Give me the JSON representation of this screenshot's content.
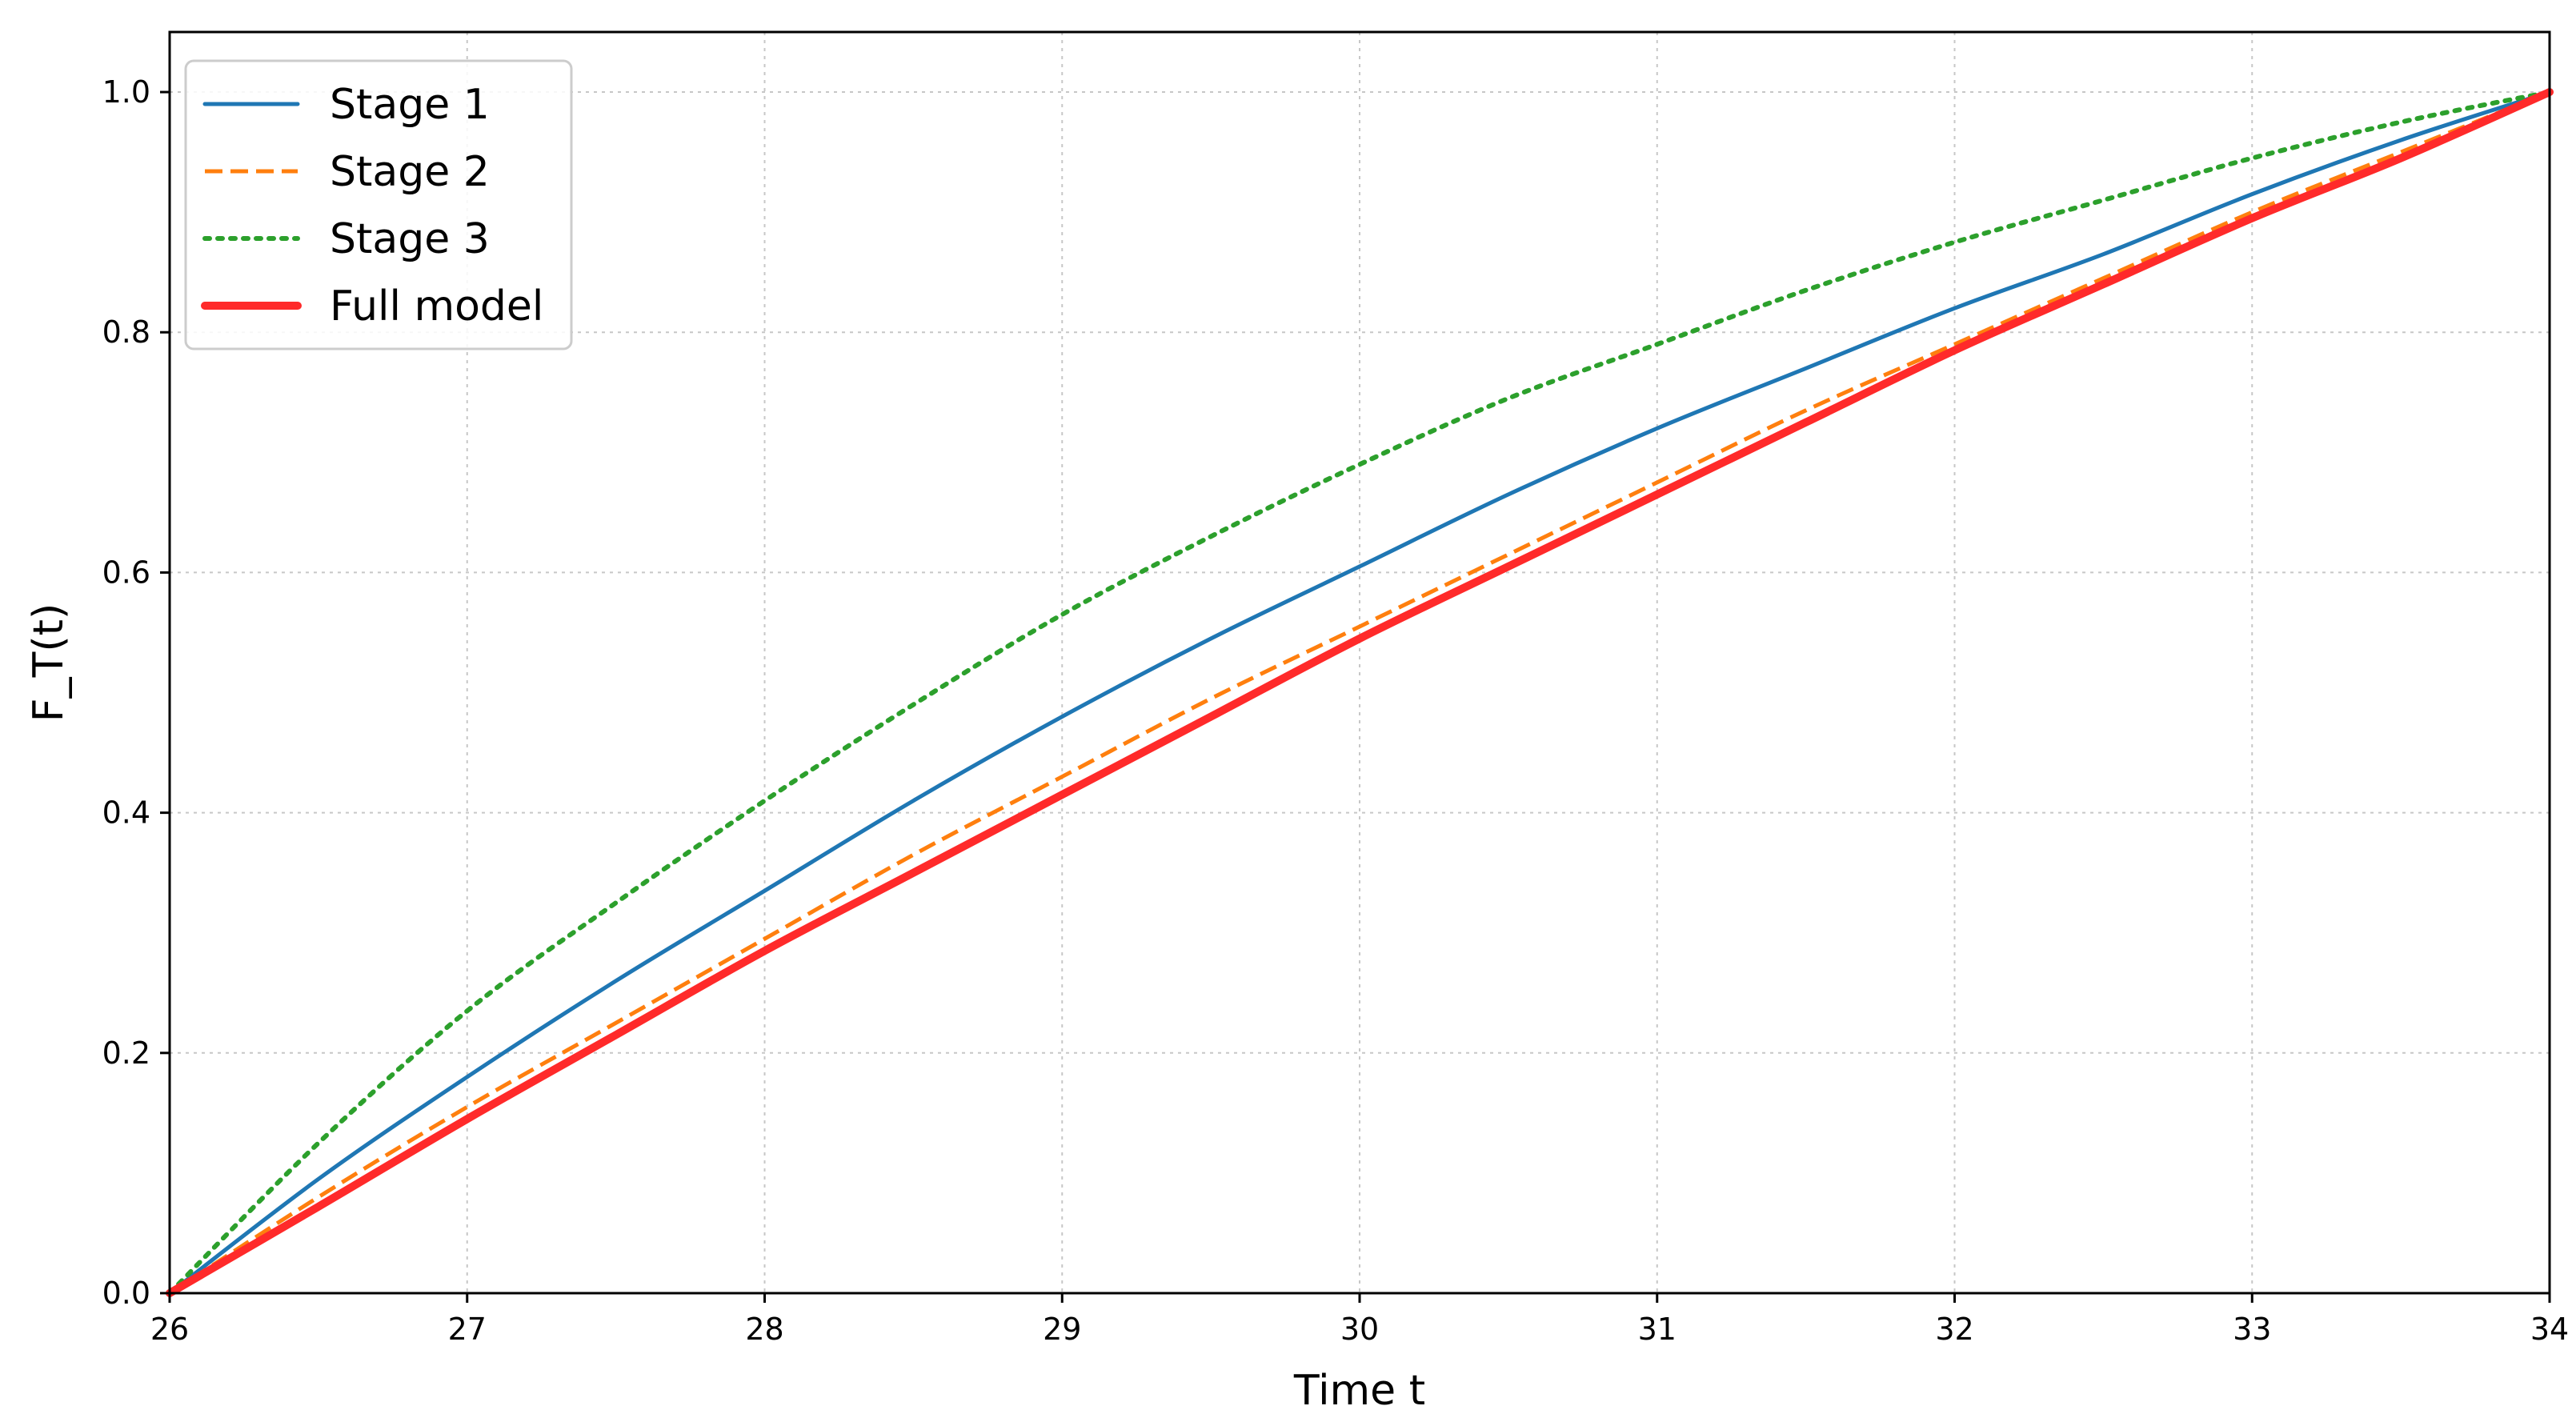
{
  "chart_data": {
    "type": "line",
    "title": "",
    "xlabel": "Time t",
    "ylabel": "F_T(t)",
    "xlim": [
      26,
      34
    ],
    "ylim": [
      0.0,
      1.05
    ],
    "xticks": [
      26,
      27,
      28,
      29,
      30,
      31,
      32,
      33,
      34
    ],
    "xtick_labels": [
      "26",
      "27",
      "28",
      "29",
      "30",
      "31",
      "32",
      "33",
      "34"
    ],
    "yticks": [
      0.0,
      0.2,
      0.4,
      0.6,
      0.8,
      1.0
    ],
    "ytick_labels": [
      "0.0",
      "0.2",
      "0.4",
      "0.6",
      "0.8",
      "1.0"
    ],
    "grid": true,
    "legend_position": "top-left",
    "x": [
      26,
      26.5,
      27,
      27.5,
      28,
      28.5,
      29,
      29.5,
      30,
      30.5,
      31,
      31.5,
      32,
      32.5,
      33,
      33.5,
      34
    ],
    "series": [
      {
        "name": "Stage 1",
        "color": "#1f77b4",
        "line_style": "solid",
        "values": [
          0.0,
          0.095,
          0.18,
          0.26,
          0.335,
          0.41,
          0.48,
          0.545,
          0.605,
          0.665,
          0.72,
          0.77,
          0.82,
          0.865,
          0.915,
          0.96,
          1.0
        ]
      },
      {
        "name": "Stage 2",
        "color": "#ff7f0e",
        "line_style": "dashed",
        "values": [
          0.0,
          0.08,
          0.155,
          0.225,
          0.295,
          0.365,
          0.43,
          0.495,
          0.555,
          0.615,
          0.675,
          0.735,
          0.79,
          0.845,
          0.9,
          0.95,
          1.0
        ]
      },
      {
        "name": "Stage 3",
        "color": "#2ca02c",
        "line_style": "dotted",
        "values": [
          0.0,
          0.125,
          0.235,
          0.325,
          0.41,
          0.49,
          0.565,
          0.63,
          0.69,
          0.745,
          0.79,
          0.835,
          0.875,
          0.91,
          0.945,
          0.975,
          1.0
        ]
      },
      {
        "name": "Full model",
        "color": "#ff2a2a",
        "line_style": "solid-thick",
        "values": [
          0.0,
          0.072,
          0.145,
          0.215,
          0.285,
          0.35,
          0.415,
          0.48,
          0.545,
          0.605,
          0.665,
          0.725,
          0.785,
          0.84,
          0.895,
          0.945,
          1.0
        ]
      }
    ]
  }
}
